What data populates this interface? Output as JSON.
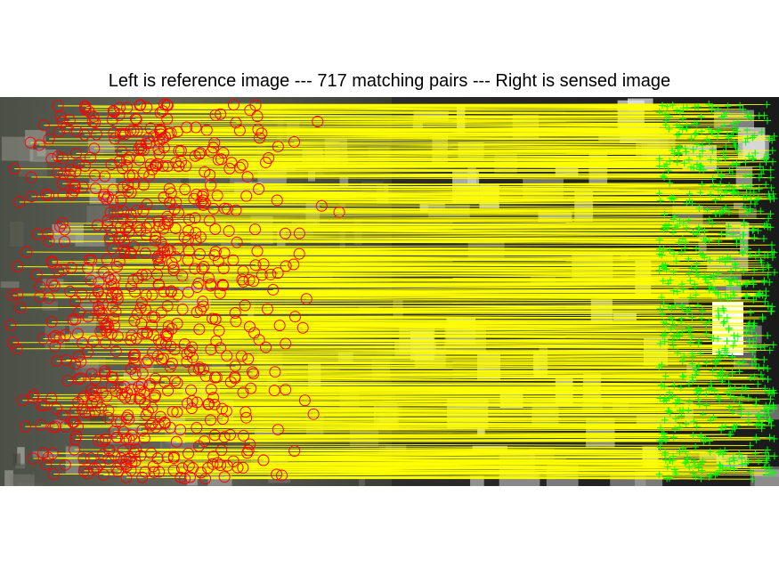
{
  "figure": {
    "title": "Left is reference image --- 717 matching pairs --- Right is sensed image",
    "match_count": 717,
    "colors": {
      "background": "#ffffff",
      "match_lines": "#ffff00",
      "reference_markers": "#ff0000",
      "sensed_markers": "#00ff00"
    },
    "markers": {
      "reference": "red-circle-icon",
      "sensed": "green-plus-icon"
    }
  }
}
